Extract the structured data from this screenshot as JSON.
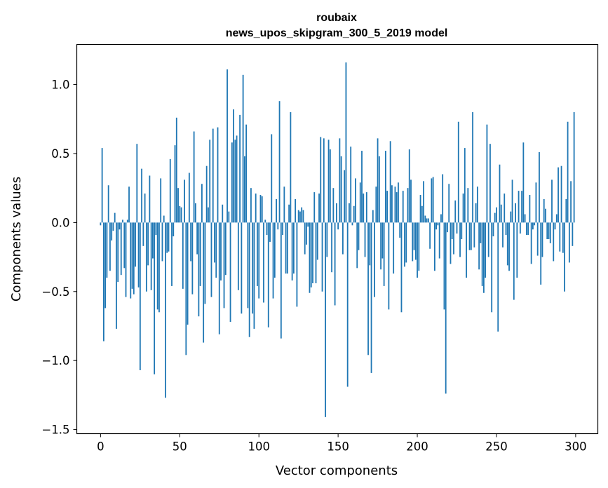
{
  "chart_data": {
    "type": "bar",
    "title": "roubaix",
    "subtitle": "news_upos_skipgram_300_5_2019 model",
    "xlabel": "Vector components",
    "ylabel": "Components values",
    "xlim": [
      -15,
      314
    ],
    "ylim": [
      -1.53,
      1.29
    ],
    "xticks": [
      0,
      50,
      100,
      150,
      200,
      250,
      300
    ],
    "xtick_labels": [
      "0",
      "50",
      "100",
      "150",
      "200",
      "250",
      "300"
    ],
    "yticks": [
      -1.5,
      -1.0,
      -0.5,
      0.0,
      0.5,
      1.0
    ],
    "ytick_labels": [
      "−1.5",
      "−1.0",
      "−0.5",
      "0.0",
      "0.5",
      "1.0"
    ],
    "grid": false,
    "bar_color": "#1f77b4",
    "values": [
      -0.02,
      0.54,
      -0.86,
      -0.62,
      -0.4,
      0.27,
      -0.35,
      -0.13,
      -0.06,
      0.07,
      -0.77,
      -0.43,
      -0.05,
      -0.38,
      0.02,
      -0.33,
      -0.54,
      0.02,
      0.26,
      -0.55,
      -0.48,
      -0.52,
      -0.32,
      0.57,
      -0.47,
      -1.07,
      0.39,
      -0.17,
      0.21,
      -0.5,
      -0.31,
      0.34,
      -0.49,
      -0.26,
      -1.1,
      -0.09,
      -0.63,
      -0.65,
      0.32,
      -0.28,
      0.05,
      -1.27,
      -0.22,
      -0.21,
      0.46,
      -0.46,
      -0.1,
      0.56,
      0.76,
      0.25,
      0.12,
      0.11,
      -0.48,
      0.31,
      -0.96,
      -0.74,
      0.36,
      -0.28,
      -0.52,
      0.66,
      0.14,
      -0.23,
      -0.68,
      -0.46,
      0.28,
      -0.87,
      -0.59,
      0.41,
      0.11,
      0.6,
      -0.54,
      0.68,
      -0.29,
      -0.4,
      0.69,
      -0.81,
      -0.42,
      0.13,
      -0.62,
      -0.38,
      1.11,
      0.08,
      -0.72,
      0.58,
      0.82,
      0.6,
      0.63,
      -0.49,
      0.78,
      -0.66,
      1.07,
      0.48,
      0.71,
      -0.62,
      -0.83,
      0.25,
      -0.66,
      -0.77,
      0.21,
      -0.46,
      -0.55,
      0.2,
      0.19,
      -0.58,
      0.02,
      -0.09,
      -0.76,
      -0.14,
      0.64,
      -0.55,
      -0.4,
      0.17,
      -0.05,
      0.88,
      -0.84,
      -0.09,
      0.26,
      -0.37,
      -0.37,
      0.13,
      0.8,
      -0.42,
      -0.37,
      0.17,
      -0.61,
      0.09,
      0.08,
      0.11,
      0.09,
      -0.23,
      -0.16,
      -0.03,
      -0.51,
      -0.47,
      -0.44,
      0.22,
      -0.44,
      -0.27,
      0.21,
      0.62,
      -0.5,
      0.61,
      -1.41,
      -0.25,
      0.6,
      0.53,
      -0.36,
      0.25,
      -0.6,
      0.14,
      -0.05,
      0.61,
      0.48,
      -0.23,
      0.38,
      1.16,
      -1.19,
      0.14,
      0.55,
      -0.02,
      0.12,
      0.32,
      -0.33,
      -0.2,
      0.29,
      0.52,
      0.21,
      -0.25,
      0.22,
      -0.96,
      -0.31,
      -1.09,
      0.09,
      -0.54,
      0.26,
      0.61,
      0.48,
      -0.34,
      -0.26,
      -0.46,
      0.52,
      0.23,
      -0.63,
      0.59,
      0.27,
      -0.37,
      0.26,
      0.22,
      0.29,
      -0.11,
      -0.65,
      0.23,
      -0.32,
      -0.29,
      0.25,
      0.53,
      0.31,
      -0.28,
      -0.2,
      -0.27,
      -0.4,
      -0.35,
      0.2,
      0.12,
      0.3,
      0.05,
      0.03,
      0.03,
      -0.19,
      0.32,
      0.33,
      -0.35,
      -0.05,
      -0.02,
      -0.26,
      0.06,
      0.35,
      -0.63,
      -1.24,
      -0.07,
      0.28,
      -0.3,
      -0.12,
      -0.23,
      0.16,
      -0.08,
      0.73,
      -0.25,
      -0.12,
      0.21,
      0.54,
      -0.4,
      0.25,
      -0.2,
      -0.2,
      0.8,
      -0.18,
      0.14,
      0.26,
      -0.34,
      -0.15,
      -0.46,
      -0.51,
      -0.4,
      0.71,
      -0.25,
      0.57,
      -0.65,
      -0.1,
      0.07,
      0.11,
      -0.79,
      0.42,
      0.13,
      -0.18,
      0.21,
      -0.09,
      -0.31,
      -0.35,
      0.08,
      0.31,
      -0.56,
      0.14,
      -0.4,
      0.23,
      -0.08,
      0.23,
      0.58,
      0.06,
      -0.09,
      -0.09,
      0.2,
      -0.3,
      -0.05,
      -0.02,
      0.29,
      -0.24,
      0.51,
      -0.45,
      -0.25,
      0.17,
      0.1,
      -0.12,
      -0.12,
      -0.15,
      0.31,
      -0.28,
      -0.05,
      0.06,
      0.4,
      -0.21,
      0.41,
      -0.22,
      -0.5,
      0.17,
      0.73,
      -0.29,
      0.3,
      -0.17,
      0.8
    ]
  }
}
